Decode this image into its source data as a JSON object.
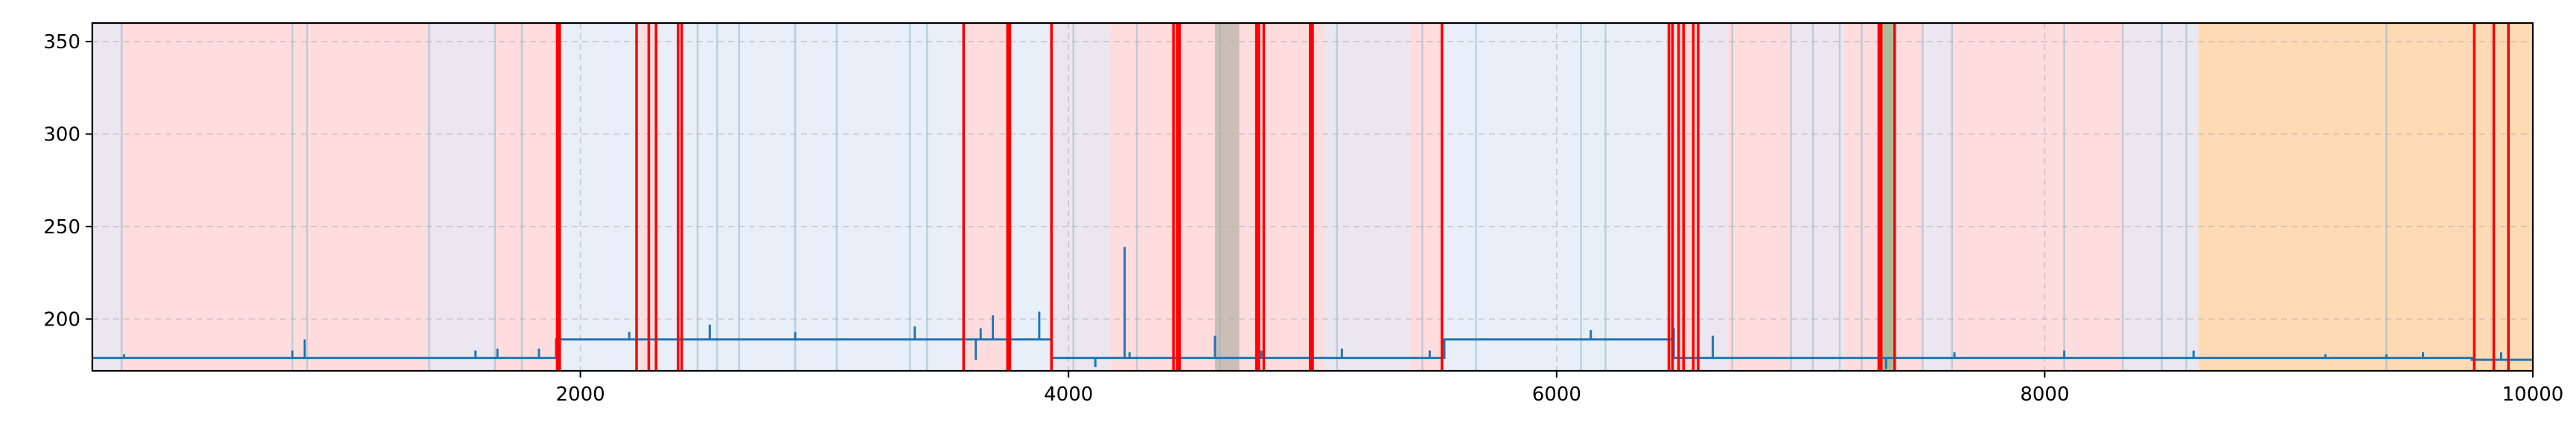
{
  "chart_data": {
    "type": "line",
    "title": "",
    "xlabel": "",
    "ylabel": "",
    "xlim": [
      0,
      10000
    ],
    "ylim": [
      172,
      360
    ],
    "grid": true,
    "x_ticks": [
      2000,
      4000,
      6000,
      8000,
      10000
    ],
    "x_tick_labels": [
      "2000",
      "4000",
      "6000",
      "8000",
      "10000"
    ],
    "y_ticks": [
      200,
      250,
      300,
      350
    ],
    "y_tick_labels": [
      "200",
      "250",
      "300",
      "350"
    ],
    "colors": {
      "line": "#1f77b4",
      "anomaly_line": "#ff0000",
      "region_red": "#ffb3b8",
      "region_blue": "#bcd0ea",
      "region_purple": "#d4c8e0",
      "region_orange": "#ffbb78",
      "thin_line": "#8fb8c8",
      "grid": "#b0b0b0"
    },
    "regions": [
      {
        "start": 0,
        "end": 120,
        "kind": "purple"
      },
      {
        "start": 120,
        "end": 1380,
        "kind": "red"
      },
      {
        "start": 1380,
        "end": 1650,
        "kind": "purple"
      },
      {
        "start": 1650,
        "end": 1910,
        "kind": "red"
      },
      {
        "start": 1910,
        "end": 2240,
        "kind": "blue"
      },
      {
        "start": 2240,
        "end": 2320,
        "kind": "red"
      },
      {
        "start": 2320,
        "end": 3570,
        "kind": "blue"
      },
      {
        "start": 3570,
        "end": 3760,
        "kind": "red"
      },
      {
        "start": 3760,
        "end": 3920,
        "kind": "blue"
      },
      {
        "start": 3920,
        "end": 4170,
        "kind": "purple"
      },
      {
        "start": 4170,
        "end": 4440,
        "kind": "red"
      },
      {
        "start": 4440,
        "end": 4600,
        "kind": "red"
      },
      {
        "start": 4600,
        "end": 4700,
        "kind": "brown"
      },
      {
        "start": 4700,
        "end": 5050,
        "kind": "red"
      },
      {
        "start": 5050,
        "end": 5400,
        "kind": "purple"
      },
      {
        "start": 5400,
        "end": 5540,
        "kind": "red"
      },
      {
        "start": 5540,
        "end": 6450,
        "kind": "blue"
      },
      {
        "start": 6450,
        "end": 6580,
        "kind": "red"
      },
      {
        "start": 6580,
        "end": 6700,
        "kind": "purple"
      },
      {
        "start": 6700,
        "end": 6960,
        "kind": "red"
      },
      {
        "start": 6960,
        "end": 7180,
        "kind": "purple"
      },
      {
        "start": 7180,
        "end": 7320,
        "kind": "red"
      },
      {
        "start": 7320,
        "end": 7380,
        "kind": "green"
      },
      {
        "start": 7380,
        "end": 7500,
        "kind": "red"
      },
      {
        "start": 7500,
        "end": 7620,
        "kind": "purple"
      },
      {
        "start": 7620,
        "end": 8320,
        "kind": "red"
      },
      {
        "start": 8320,
        "end": 8630,
        "kind": "purple"
      },
      {
        "start": 8630,
        "end": 10000,
        "kind": "orange"
      }
    ],
    "thin_lines": [
      120,
      820,
      880,
      1380,
      1650,
      1760,
      2480,
      2560,
      2650,
      2880,
      3050,
      3350,
      3420,
      4020,
      4280,
      4620,
      5100,
      5450,
      5670,
      6100,
      6200,
      6470,
      6720,
      6960,
      7050,
      7160,
      7250,
      7500,
      7620,
      8080,
      8320,
      8480,
      8580,
      9400
    ],
    "anomaly_lines": [
      1905,
      1915,
      2230,
      2280,
      2310,
      2400,
      2415,
      3570,
      3750,
      3760,
      3930,
      4430,
      4445,
      4455,
      4770,
      4780,
      4800,
      4990,
      5000,
      5530,
      6460,
      6475,
      6500,
      6520,
      6560,
      6580,
      7320,
      7330,
      7385,
      9760,
      9840,
      9900
    ],
    "series": [
      {
        "segments": [
          {
            "start": 0,
            "end": 1900,
            "level": 179
          },
          {
            "start": 1900,
            "end": 3930,
            "level": 189
          },
          {
            "start": 3930,
            "end": 5540,
            "level": 179
          },
          {
            "start": 5540,
            "end": 6480,
            "level": 189
          },
          {
            "start": 6480,
            "end": 9750,
            "level": 179
          },
          {
            "start": 9750,
            "end": 10000,
            "level": 178
          }
        ],
        "spikes": [
          {
            "x": 130,
            "y": 181
          },
          {
            "x": 820,
            "y": 183
          },
          {
            "x": 870,
            "y": 189
          },
          {
            "x": 1570,
            "y": 183
          },
          {
            "x": 1660,
            "y": 184
          },
          {
            "x": 1830,
            "y": 184
          },
          {
            "x": 2200,
            "y": 193
          },
          {
            "x": 2530,
            "y": 197
          },
          {
            "x": 2880,
            "y": 193
          },
          {
            "x": 3370,
            "y": 196
          },
          {
            "x": 3620,
            "y": 178
          },
          {
            "x": 3640,
            "y": 195
          },
          {
            "x": 3690,
            "y": 202
          },
          {
            "x": 3880,
            "y": 204
          },
          {
            "x": 4110,
            "y": 174
          },
          {
            "x": 4230,
            "y": 239
          },
          {
            "x": 4250,
            "y": 182
          },
          {
            "x": 4600,
            "y": 191
          },
          {
            "x": 4790,
            "y": 183
          },
          {
            "x": 5120,
            "y": 184
          },
          {
            "x": 5480,
            "y": 183
          },
          {
            "x": 6140,
            "y": 194
          },
          {
            "x": 6480,
            "y": 195
          },
          {
            "x": 6640,
            "y": 191
          },
          {
            "x": 7350,
            "y": 173
          },
          {
            "x": 7630,
            "y": 182
          },
          {
            "x": 8080,
            "y": 183
          },
          {
            "x": 8610,
            "y": 183
          },
          {
            "x": 9150,
            "y": 181
          },
          {
            "x": 9400,
            "y": 181
          },
          {
            "x": 9550,
            "y": 182
          },
          {
            "x": 9870,
            "y": 182
          }
        ]
      }
    ]
  }
}
